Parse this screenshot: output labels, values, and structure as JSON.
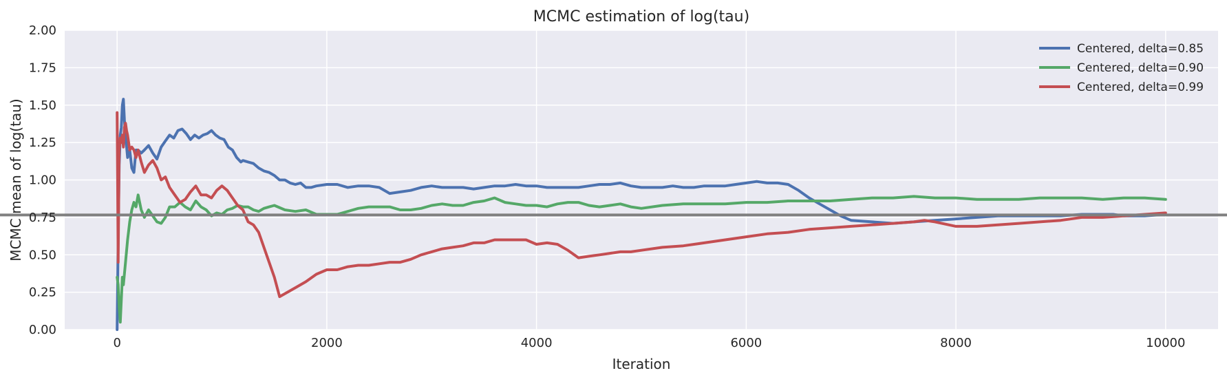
{
  "colors": {
    "background": "#eaeaf2",
    "grid": "#ffffff",
    "reference_line": "#808080"
  },
  "chart_data": {
    "type": "line",
    "title": "MCMC estimation of log(tau)",
    "xlabel": "Iteration",
    "ylabel": "MCMC mean of log(tau)",
    "xlim": [
      -500,
      10500
    ],
    "ylim": [
      0,
      2
    ],
    "xticks": [
      0,
      2000,
      4000,
      6000,
      8000,
      10000
    ],
    "xtick_labels": [
      "0",
      "2000",
      "4000",
      "6000",
      "8000",
      "10000"
    ],
    "yticks": [
      0,
      0.25,
      0.5,
      0.75,
      1.0,
      1.25,
      1.5,
      1.75,
      2.0
    ],
    "ytick_labels": [
      "0.00",
      "0.25",
      "0.50",
      "0.75",
      "1.00",
      "1.25",
      "1.50",
      "1.75",
      "2.00"
    ],
    "grid": true,
    "legend_position": "top-right",
    "reference_line": {
      "y": 0.766
    },
    "series": [
      {
        "name": "Centered, delta=0.85",
        "color": "#4c72b0",
        "x": [
          0,
          10,
          20,
          30,
          40,
          50,
          60,
          70,
          80,
          100,
          120,
          140,
          160,
          180,
          200,
          230,
          260,
          300,
          340,
          380,
          420,
          460,
          500,
          540,
          580,
          620,
          660,
          700,
          740,
          780,
          820,
          860,
          900,
          940,
          980,
          1020,
          1060,
          1100,
          1140,
          1180,
          1200,
          1250,
          1300,
          1350,
          1400,
          1450,
          1500,
          1550,
          1600,
          1650,
          1700,
          1750,
          1800,
          1850,
          1900,
          2000,
          2100,
          2200,
          2300,
          2400,
          2500,
          2600,
          2700,
          2800,
          2900,
          3000,
          3100,
          3200,
          3300,
          3400,
          3500,
          3600,
          3700,
          3800,
          3900,
          4000,
          4100,
          4200,
          4300,
          4400,
          4500,
          4600,
          4700,
          4800,
          4900,
          5000,
          5100,
          5200,
          5300,
          5400,
          5500,
          5600,
          5700,
          5800,
          5900,
          6000,
          6100,
          6200,
          6300,
          6400,
          6500,
          6600,
          6700,
          6800,
          6900,
          7000,
          7200,
          7400,
          7600,
          7800,
          8000,
          8200,
          8400,
          8600,
          8800,
          9000,
          9200,
          9400,
          9500,
          9600,
          9800,
          10000
        ],
        "values": [
          0.0,
          0.6,
          1.1,
          1.3,
          1.35,
          1.5,
          1.54,
          1.4,
          1.3,
          1.15,
          1.2,
          1.08,
          1.05,
          1.2,
          1.2,
          1.18,
          1.2,
          1.23,
          1.18,
          1.14,
          1.22,
          1.26,
          1.3,
          1.28,
          1.33,
          1.34,
          1.31,
          1.27,
          1.3,
          1.28,
          1.3,
          1.31,
          1.33,
          1.3,
          1.28,
          1.27,
          1.22,
          1.2,
          1.15,
          1.12,
          1.13,
          1.12,
          1.11,
          1.08,
          1.06,
          1.05,
          1.03,
          1.0,
          1.0,
          0.98,
          0.97,
          0.98,
          0.95,
          0.95,
          0.96,
          0.97,
          0.97,
          0.95,
          0.96,
          0.96,
          0.95,
          0.91,
          0.92,
          0.93,
          0.95,
          0.96,
          0.95,
          0.95,
          0.95,
          0.94,
          0.95,
          0.96,
          0.96,
          0.97,
          0.96,
          0.96,
          0.95,
          0.95,
          0.95,
          0.95,
          0.96,
          0.97,
          0.97,
          0.98,
          0.96,
          0.95,
          0.95,
          0.95,
          0.96,
          0.95,
          0.95,
          0.96,
          0.96,
          0.96,
          0.97,
          0.98,
          0.99,
          0.98,
          0.98,
          0.97,
          0.93,
          0.88,
          0.84,
          0.8,
          0.76,
          0.73,
          0.72,
          0.71,
          0.72,
          0.73,
          0.74,
          0.75,
          0.76,
          0.76,
          0.76,
          0.76,
          0.77,
          0.77,
          0.77,
          0.76,
          0.76,
          0.77
        ]
      },
      {
        "name": "Centered, delta=0.90",
        "color": "#55a868",
        "x": [
          0,
          10,
          20,
          30,
          40,
          50,
          60,
          80,
          100,
          120,
          140,
          160,
          180,
          200,
          230,
          260,
          300,
          340,
          380,
          420,
          460,
          500,
          550,
          600,
          650,
          700,
          750,
          800,
          850,
          900,
          950,
          1000,
          1050,
          1100,
          1150,
          1200,
          1250,
          1300,
          1350,
          1400,
          1450,
          1500,
          1600,
          1700,
          1800,
          1900,
          2000,
          2100,
          2200,
          2300,
          2400,
          2500,
          2600,
          2700,
          2800,
          2900,
          3000,
          3100,
          3200,
          3300,
          3400,
          3500,
          3600,
          3700,
          3800,
          3900,
          4000,
          4100,
          4200,
          4300,
          4400,
          4500,
          4600,
          4700,
          4800,
          4900,
          5000,
          5200,
          5400,
          5600,
          5800,
          6000,
          6200,
          6400,
          6600,
          6800,
          7000,
          7200,
          7400,
          7600,
          7800,
          8000,
          8200,
          8400,
          8600,
          8800,
          9000,
          9200,
          9400,
          9600,
          9800,
          10000
        ],
        "values": [
          0.35,
          0.3,
          0.15,
          0.05,
          0.2,
          0.35,
          0.3,
          0.45,
          0.6,
          0.72,
          0.8,
          0.85,
          0.82,
          0.9,
          0.8,
          0.75,
          0.8,
          0.76,
          0.72,
          0.71,
          0.75,
          0.82,
          0.82,
          0.85,
          0.82,
          0.8,
          0.86,
          0.82,
          0.8,
          0.76,
          0.78,
          0.77,
          0.8,
          0.81,
          0.83,
          0.82,
          0.82,
          0.8,
          0.79,
          0.81,
          0.82,
          0.83,
          0.8,
          0.79,
          0.8,
          0.77,
          0.77,
          0.77,
          0.79,
          0.81,
          0.82,
          0.82,
          0.82,
          0.8,
          0.8,
          0.81,
          0.83,
          0.84,
          0.83,
          0.83,
          0.85,
          0.86,
          0.88,
          0.85,
          0.84,
          0.83,
          0.83,
          0.82,
          0.84,
          0.85,
          0.85,
          0.83,
          0.82,
          0.83,
          0.84,
          0.82,
          0.81,
          0.83,
          0.84,
          0.84,
          0.84,
          0.85,
          0.85,
          0.86,
          0.86,
          0.86,
          0.87,
          0.88,
          0.88,
          0.89,
          0.88,
          0.88,
          0.87,
          0.87,
          0.87,
          0.88,
          0.88,
          0.88,
          0.87,
          0.88,
          0.88,
          0.87
        ]
      },
      {
        "name": "Centered, delta=0.99",
        "color": "#c44e52",
        "x": [
          0,
          5,
          10,
          20,
          30,
          40,
          50,
          60,
          70,
          80,
          90,
          100,
          120,
          140,
          160,
          180,
          200,
          230,
          260,
          300,
          340,
          380,
          420,
          460,
          500,
          550,
          600,
          650,
          700,
          750,
          800,
          850,
          900,
          950,
          1000,
          1050,
          1100,
          1150,
          1200,
          1250,
          1300,
          1350,
          1400,
          1450,
          1500,
          1550,
          1600,
          1700,
          1800,
          1900,
          2000,
          2100,
          2200,
          2300,
          2400,
          2500,
          2600,
          2700,
          2800,
          2900,
          3000,
          3100,
          3200,
          3300,
          3400,
          3500,
          3600,
          3700,
          3800,
          3900,
          4000,
          4100,
          4200,
          4300,
          4400,
          4500,
          4600,
          4700,
          4800,
          4900,
          5000,
          5200,
          5400,
          5600,
          5800,
          6000,
          6200,
          6400,
          6600,
          6800,
          7000,
          7200,
          7400,
          7600,
          7700,
          7800,
          8000,
          8200,
          8400,
          8600,
          8800,
          9000,
          9200,
          9400,
          9600,
          9800,
          10000
        ],
        "values": [
          1.45,
          1.0,
          0.45,
          1.2,
          1.28,
          1.25,
          1.3,
          1.22,
          1.35,
          1.38,
          1.33,
          1.3,
          1.2,
          1.22,
          1.2,
          1.15,
          1.2,
          1.12,
          1.05,
          1.1,
          1.13,
          1.08,
          1.0,
          1.02,
          0.95,
          0.9,
          0.85,
          0.87,
          0.92,
          0.96,
          0.9,
          0.9,
          0.88,
          0.93,
          0.96,
          0.93,
          0.88,
          0.83,
          0.8,
          0.72,
          0.7,
          0.65,
          0.55,
          0.45,
          0.35,
          0.22,
          0.24,
          0.28,
          0.32,
          0.37,
          0.4,
          0.4,
          0.42,
          0.43,
          0.43,
          0.44,
          0.45,
          0.45,
          0.47,
          0.5,
          0.52,
          0.54,
          0.55,
          0.56,
          0.58,
          0.58,
          0.6,
          0.6,
          0.6,
          0.6,
          0.57,
          0.58,
          0.57,
          0.53,
          0.48,
          0.49,
          0.5,
          0.51,
          0.52,
          0.52,
          0.53,
          0.55,
          0.56,
          0.58,
          0.6,
          0.62,
          0.64,
          0.65,
          0.67,
          0.68,
          0.69,
          0.7,
          0.71,
          0.72,
          0.73,
          0.72,
          0.69,
          0.69,
          0.7,
          0.71,
          0.72,
          0.73,
          0.75,
          0.75,
          0.76,
          0.77,
          0.78
        ]
      }
    ]
  }
}
